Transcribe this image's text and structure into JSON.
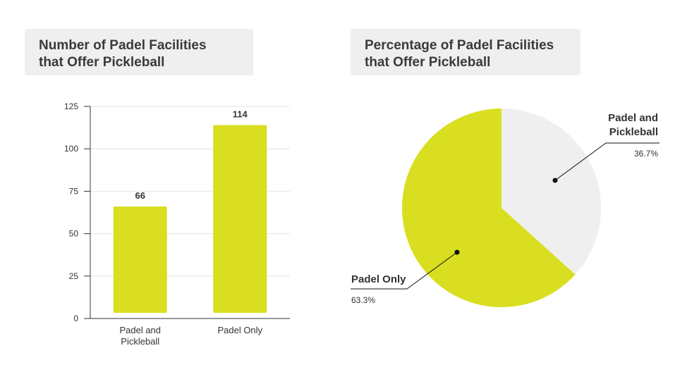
{
  "colors": {
    "accent": "#d9de21",
    "secondary": "#efefef",
    "grid": "#e6e6e6",
    "axis": "#333333"
  },
  "bar_chart": {
    "title": "Number of Padel Facilities\nthat Offer Pickleball"
  },
  "pie_chart": {
    "title": "Percentage of Padel Facilities\nthat Offer Pickleball"
  },
  "chart_data": [
    {
      "type": "bar",
      "title": "Number of Padel Facilities\nthat Offer Pickleball",
      "categories": [
        "Padel and\nPickleball",
        "Padel Only"
      ],
      "values": [
        66,
        114
      ],
      "value_labels": [
        "66",
        "114"
      ],
      "xlabel": "",
      "ylabel": "",
      "ylim": [
        0,
        125
      ],
      "yticks": [
        0,
        25,
        50,
        75,
        100,
        125
      ],
      "ytick_labels": [
        "0",
        "25",
        "50",
        "75",
        "100",
        "125"
      ],
      "grid": true,
      "legend": "none"
    },
    {
      "type": "pie",
      "title": "Percentage of Padel Facilities\nthat Offer Pickleball",
      "labels": [
        "Padel and\nPickleball",
        "Padel Only"
      ],
      "values": [
        36.7,
        63.3
      ],
      "value_labels": [
        "36.7%",
        "63.3%"
      ],
      "colors": [
        "#efefef",
        "#d9de21"
      ],
      "start": "12 o'clock, clockwise",
      "legend": "none"
    }
  ]
}
